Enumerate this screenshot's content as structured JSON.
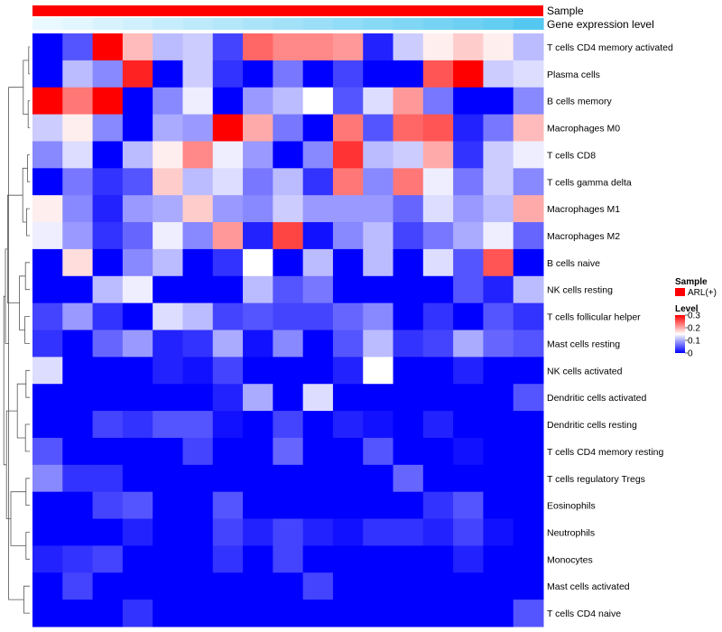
{
  "chart_data": {
    "type": "heatmap",
    "title": "",
    "annotation_tracks": [
      {
        "name": "Sample",
        "label": "Sample"
      },
      {
        "name": "Gene expression level",
        "label": "Gene expression level"
      }
    ],
    "rows": [
      "T cells CD4 memory activated",
      "Plasma cells",
      "B cells memory",
      "Macrophages M0",
      "T cells CD8",
      "T cells gamma delta",
      "Macrophages M1",
      "Macrophages M2",
      "B cells naive",
      "NK cells resting",
      "T cells follicular helper",
      "Mast cells resting",
      "NK cells activated",
      "Dendritic cells activated",
      "Dendritic cells resting",
      "T cells CD4 memory resting",
      "T cells regulatory  Tregs",
      "Eosinophils",
      "Neutrophils",
      "Monocytes",
      "Mast cells activated",
      "T cells CD4 naive"
    ],
    "n_columns": 17,
    "values": [
      [
        0.0,
        0.05,
        0.3,
        0.19,
        0.11,
        0.12,
        0.04,
        0.24,
        0.22,
        0.22,
        0.21,
        0.02,
        0.12,
        0.16,
        0.18,
        0.16,
        0.11
      ],
      [
        0.0,
        0.11,
        0.08,
        0.28,
        0.0,
        0.12,
        0.03,
        0.0,
        0.07,
        0.0,
        0.04,
        0.0,
        0.0,
        0.25,
        0.3,
        0.12,
        0.13
      ],
      [
        0.3,
        0.23,
        0.3,
        0.0,
        0.08,
        0.14,
        0.0,
        0.09,
        0.11,
        0.15,
        0.05,
        0.13,
        0.21,
        0.07,
        0.0,
        0.0,
        0.08
      ],
      [
        0.12,
        0.16,
        0.08,
        0.0,
        0.1,
        0.09,
        0.3,
        0.2,
        0.07,
        0.0,
        0.23,
        0.05,
        0.24,
        0.25,
        0.02,
        0.07,
        0.19
      ],
      [
        0.08,
        0.13,
        0.0,
        0.11,
        0.16,
        0.22,
        0.14,
        0.09,
        0.0,
        0.08,
        0.27,
        0.11,
        0.12,
        0.2,
        0.03,
        0.12,
        0.14
      ],
      [
        0.0,
        0.07,
        0.03,
        0.05,
        0.18,
        0.11,
        0.13,
        0.07,
        0.11,
        0.03,
        0.23,
        0.08,
        0.23,
        0.14,
        0.07,
        0.12,
        0.08
      ],
      [
        0.16,
        0.08,
        0.02,
        0.09,
        0.1,
        0.18,
        0.09,
        0.08,
        0.12,
        0.09,
        0.09,
        0.09,
        0.06,
        0.13,
        0.09,
        0.11,
        0.2
      ],
      [
        0.14,
        0.09,
        0.03,
        0.06,
        0.14,
        0.08,
        0.21,
        0.02,
        0.26,
        0.01,
        0.08,
        0.11,
        0.04,
        0.07,
        0.1,
        0.14,
        0.06
      ],
      [
        0.0,
        0.17,
        0.0,
        0.08,
        0.11,
        0.0,
        0.03,
        0.15,
        0.0,
        0.11,
        0.0,
        0.11,
        0.0,
        0.13,
        0.05,
        0.25,
        0.0
      ],
      [
        0.0,
        0.0,
        0.11,
        0.14,
        0.0,
        0.0,
        0.0,
        0.11,
        0.05,
        0.07,
        0.0,
        0.0,
        0.0,
        0.0,
        0.05,
        0.02,
        0.11
      ],
      [
        0.04,
        0.09,
        0.03,
        0.0,
        0.13,
        0.11,
        0.04,
        0.05,
        0.04,
        0.04,
        0.06,
        0.08,
        0.0,
        0.03,
        0.0,
        0.05,
        0.03
      ],
      [
        0.03,
        0.0,
        0.06,
        0.09,
        0.02,
        0.03,
        0.1,
        0.01,
        0.08,
        0.0,
        0.05,
        0.11,
        0.03,
        0.04,
        0.1,
        0.06,
        0.05
      ],
      [
        0.13,
        0.0,
        0.0,
        0.0,
        0.02,
        0.01,
        0.04,
        0.0,
        0.0,
        0.0,
        0.02,
        0.15,
        0.0,
        0.0,
        0.02,
        0.0,
        0.0
      ],
      [
        0.0,
        0.0,
        0.0,
        0.0,
        0.0,
        0.0,
        0.02,
        0.1,
        0.0,
        0.13,
        0.0,
        0.0,
        0.0,
        0.0,
        0.0,
        0.0,
        0.05
      ],
      [
        0.0,
        0.0,
        0.04,
        0.03,
        0.05,
        0.05,
        0.01,
        0.0,
        0.04,
        0.0,
        0.02,
        0.01,
        0.0,
        0.02,
        0.0,
        0.0,
        0.0
      ],
      [
        0.05,
        0.0,
        0.0,
        0.0,
        0.0,
        0.04,
        0.0,
        0.0,
        0.06,
        0.0,
        0.0,
        0.05,
        0.0,
        0.0,
        0.01,
        0.0,
        0.0
      ],
      [
        0.08,
        0.03,
        0.03,
        0.0,
        0.0,
        0.0,
        0.0,
        0.0,
        0.0,
        0.0,
        0.0,
        0.0,
        0.06,
        0.0,
        0.0,
        0.0,
        0.0
      ],
      [
        0.0,
        0.0,
        0.04,
        0.05,
        0.0,
        0.0,
        0.05,
        0.0,
        0.0,
        0.0,
        0.0,
        0.0,
        0.0,
        0.03,
        0.05,
        0.0,
        0.0
      ],
      [
        0.0,
        0.0,
        0.0,
        0.02,
        0.0,
        0.0,
        0.04,
        0.02,
        0.04,
        0.02,
        0.01,
        0.03,
        0.03,
        0.02,
        0.04,
        0.01,
        0.0
      ],
      [
        0.02,
        0.03,
        0.04,
        0.0,
        0.0,
        0.0,
        0.03,
        0.0,
        0.04,
        0.0,
        0.0,
        0.0,
        0.0,
        0.0,
        0.02,
        0.0,
        0.0
      ],
      [
        0.0,
        0.04,
        0.0,
        0.0,
        0.0,
        0.0,
        0.0,
        0.0,
        0.0,
        0.04,
        0.0,
        0.0,
        0.0,
        0.0,
        0.0,
        0.0,
        0.0
      ],
      [
        0.0,
        0.0,
        0.0,
        0.03,
        0.0,
        0.0,
        0.0,
        0.0,
        0.0,
        0.0,
        0.0,
        0.0,
        0.0,
        0.0,
        0.0,
        0.0,
        0.05
      ]
    ],
    "annotation_values": {
      "Sample": [
        "ARL(+)",
        "ARL(+)",
        "ARL(+)",
        "ARL(+)",
        "ARL(+)",
        "ARL(+)",
        "ARL(+)",
        "ARL(+)",
        "ARL(+)",
        "ARL(+)",
        "ARL(+)",
        "ARL(+)",
        "ARL(+)",
        "ARL(+)",
        "ARL(+)",
        "ARL(+)",
        "ARL(+)"
      ],
      "Gene expression level": [
        0.0,
        0.06,
        0.12,
        0.18,
        0.24,
        0.3,
        0.36,
        0.42,
        0.48,
        0.54,
        0.6,
        0.66,
        0.72,
        0.78,
        0.84,
        0.9,
        1.0
      ]
    },
    "color_scale": {
      "min": 0,
      "max": 0.3,
      "stops": [
        {
          "value": 0,
          "color": "#0000ff"
        },
        {
          "value": 0.15,
          "color": "#ffffff"
        },
        {
          "value": 0.3,
          "color": "#ff0000"
        }
      ]
    },
    "expression_colors": {
      "low": "#eaf9ff",
      "high": "#55c8f1"
    },
    "legend": {
      "placement": "right",
      "sample_title": "Sample",
      "sample_entries": [
        {
          "label": "ARL(+)",
          "color": "#ff0000"
        }
      ],
      "level_title": "Level",
      "level_ticks": [
        0.3,
        0.2,
        0.1,
        0
      ],
      "level_tick_labels": [
        "0.3",
        "0.2",
        "0.1",
        "0"
      ]
    },
    "row_dendrogram": {
      "shown": true,
      "leaf_order": "rows",
      "merges": [
        [
          0,
          1,
          0.96
        ],
        [
          2,
          3,
          0.94
        ],
        [
          4,
          5,
          0.92
        ],
        [
          6,
          7,
          0.88
        ],
        [
          8,
          9,
          0.84
        ],
        [
          10,
          11,
          0.82
        ],
        [
          12,
          13,
          0.86
        ],
        [
          14,
          15,
          0.84
        ],
        [
          16,
          17,
          0.86
        ],
        [
          18,
          19,
          0.86
        ],
        [
          20,
          21,
          0.78
        ],
        [
          22,
          23,
          0.76
        ],
        [
          24,
          25,
          0.74
        ],
        [
          26,
          27,
          0.62
        ],
        [
          28,
          29,
          0.54
        ],
        [
          30,
          31,
          0.3
        ],
        [
          32,
          33,
          0.22
        ],
        [
          34,
          35,
          0.18
        ],
        [
          36,
          37,
          0.14
        ],
        [
          38,
          39,
          0.1
        ],
        [
          40,
          41,
          0.04
        ]
      ]
    }
  }
}
